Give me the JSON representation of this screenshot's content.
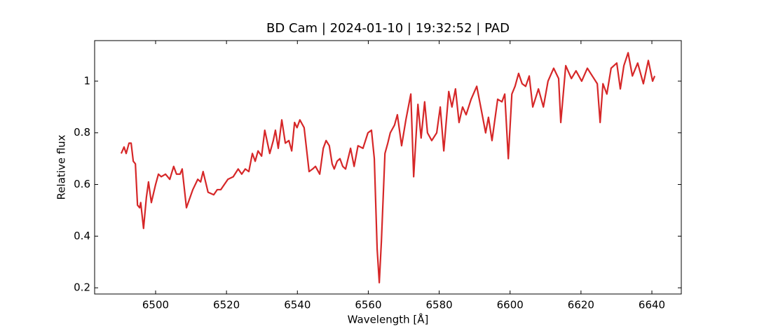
{
  "chart_data": {
    "type": "line",
    "title": "BD Cam | 2024-01-10 | 19:32:52 | PAD",
    "x_label": "Wavelength [Å]",
    "y_label": "Relative flux",
    "xlim": [
      6482.8,
      6648.3
    ],
    "ylim": [
      0.176,
      1.157
    ],
    "xticks": [
      6500,
      6520,
      6540,
      6560,
      6580,
      6600,
      6620,
      6640
    ],
    "yticks": [
      0.2,
      0.4,
      0.6,
      0.8,
      1.0
    ],
    "grid": false,
    "x": [
      6490.3,
      6491.1,
      6491.7,
      6492.5,
      6493.1,
      6493.7,
      6494.3,
      6494.9,
      6495.5,
      6495.8,
      6496.6,
      6497.4,
      6498.0,
      6498.8,
      6500.0,
      6500.8,
      6501.6,
      6502.8,
      6504.0,
      6505.1,
      6505.9,
      6506.9,
      6507.5,
      6508.7,
      6510.5,
      6511.9,
      6512.7,
      6513.4,
      6514.8,
      6516.4,
      6517.4,
      6518.4,
      6520.4,
      6521.9,
      6523.3,
      6524.3,
      6525.3,
      6526.3,
      6527.3,
      6528.1,
      6528.9,
      6529.9,
      6530.8,
      6532.2,
      6533.2,
      6533.8,
      6534.6,
      6535.6,
      6536.6,
      6537.6,
      6538.4,
      6539.2,
      6539.9,
      6540.7,
      6541.9,
      6543.3,
      6544.3,
      6545.1,
      6546.3,
      6547.3,
      6548.1,
      6549.0,
      6549.8,
      6550.4,
      6551.2,
      6552.0,
      6552.8,
      6553.6,
      6555.0,
      6556.0,
      6557.1,
      6558.5,
      6559.9,
      6560.9,
      6561.7,
      6562.5,
      6563.1,
      6563.7,
      6564.7,
      6565.5,
      6566.2,
      6567.4,
      6568.2,
      6569.4,
      6570.6,
      6572.0,
      6572.8,
      6574.0,
      6574.9,
      6575.9,
      6576.7,
      6577.9,
      6579.3,
      6580.3,
      6581.3,
      6582.7,
      6583.6,
      6584.6,
      6585.6,
      6586.6,
      6587.6,
      6589.0,
      6590.6,
      6592.0,
      6593.1,
      6593.9,
      6594.9,
      6596.5,
      6597.7,
      6598.5,
      6599.5,
      6600.5,
      6601.4,
      6602.4,
      6603.4,
      6604.4,
      6605.4,
      6606.4,
      6608.0,
      6609.4,
      6610.7,
      6612.3,
      6613.7,
      6614.3,
      6615.7,
      6617.3,
      6618.6,
      6620.2,
      6621.8,
      6623.2,
      6624.6,
      6625.4,
      6626.2,
      6627.3,
      6628.5,
      6630.1,
      6631.1,
      6632.1,
      6633.3,
      6634.5,
      6636.0,
      6637.6,
      6639.0,
      6640.2,
      6640.8
    ],
    "series": [
      {
        "color": "#d62728",
        "values": [
          0.72,
          0.745,
          0.72,
          0.76,
          0.76,
          0.69,
          0.68,
          0.52,
          0.51,
          0.53,
          0.43,
          0.55,
          0.61,
          0.53,
          0.6,
          0.64,
          0.63,
          0.64,
          0.62,
          0.67,
          0.64,
          0.64,
          0.66,
          0.51,
          0.58,
          0.62,
          0.61,
          0.65,
          0.57,
          0.56,
          0.58,
          0.58,
          0.62,
          0.63,
          0.66,
          0.64,
          0.66,
          0.65,
          0.72,
          0.69,
          0.73,
          0.71,
          0.81,
          0.72,
          0.77,
          0.81,
          0.74,
          0.85,
          0.76,
          0.77,
          0.73,
          0.84,
          0.82,
          0.85,
          0.82,
          0.65,
          0.66,
          0.67,
          0.64,
          0.74,
          0.77,
          0.75,
          0.68,
          0.66,
          0.69,
          0.7,
          0.67,
          0.66,
          0.74,
          0.67,
          0.75,
          0.74,
          0.8,
          0.81,
          0.7,
          0.35,
          0.22,
          0.38,
          0.72,
          0.76,
          0.8,
          0.83,
          0.87,
          0.75,
          0.85,
          0.95,
          0.63,
          0.91,
          0.78,
          0.92,
          0.8,
          0.77,
          0.8,
          0.9,
          0.73,
          0.96,
          0.9,
          0.97,
          0.84,
          0.9,
          0.87,
          0.93,
          0.98,
          0.88,
          0.8,
          0.86,
          0.77,
          0.93,
          0.92,
          0.95,
          0.7,
          0.95,
          0.98,
          1.03,
          0.99,
          0.98,
          1.02,
          0.9,
          0.97,
          0.9,
          1.0,
          1.05,
          1.01,
          0.84,
          1.06,
          1.01,
          1.04,
          1.0,
          1.05,
          1.02,
          0.99,
          0.84,
          0.99,
          0.95,
          1.05,
          1.07,
          0.97,
          1.06,
          1.11,
          1.02,
          1.07,
          0.99,
          1.08,
          1.0,
          1.02
        ]
      }
    ]
  }
}
